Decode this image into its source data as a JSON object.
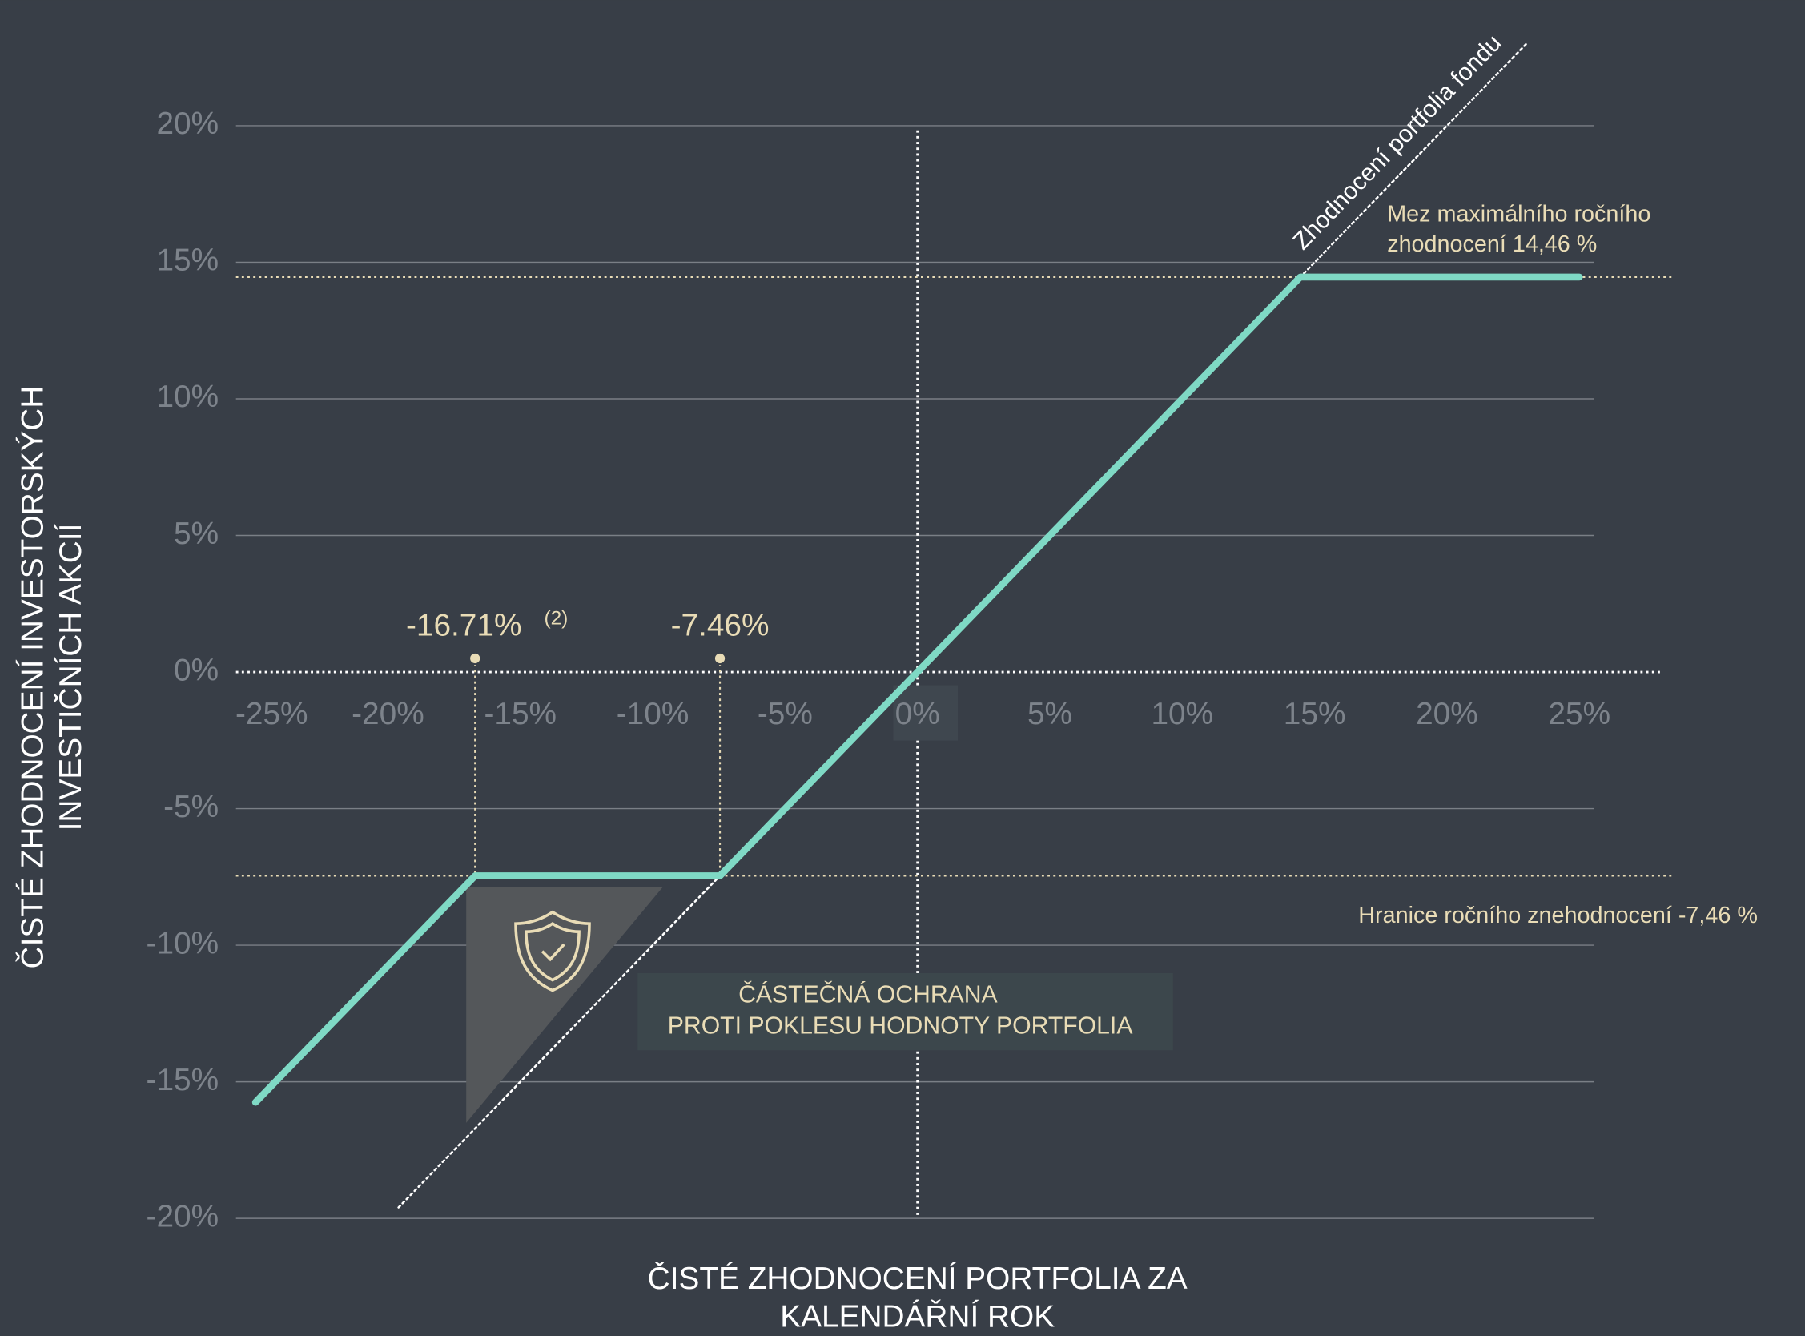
{
  "chart_data": {
    "type": "line",
    "xlabel": [
      "ČISTÉ ZHODNOCENÍ PORTFOLIA ZA",
      "KALENDÁŘNÍ ROK"
    ],
    "ylabel": [
      "ČISTÉ ZHODNOCENÍ INVESTORSKÝCH",
      "INVESTIČNÍCH AKCIÍ"
    ],
    "xlim": [
      -25,
      25
    ],
    "ylim": [
      -20,
      20
    ],
    "xticks": [
      {
        "value": -25,
        "label": "-25%"
      },
      {
        "value": -20,
        "label": "-20%"
      },
      {
        "value": -15,
        "label": "-15%"
      },
      {
        "value": -10,
        "label": "-10%"
      },
      {
        "value": -5,
        "label": "-5%"
      },
      {
        "value": 0,
        "label": "0%"
      },
      {
        "value": 5,
        "label": "5%"
      },
      {
        "value": 10,
        "label": "10%"
      },
      {
        "value": 15,
        "label": "15%"
      },
      {
        "value": 20,
        "label": "20%"
      },
      {
        "value": 25,
        "label": "25%"
      }
    ],
    "yticks": [
      {
        "value": 20,
        "label": "20%"
      },
      {
        "value": 15,
        "label": "15%"
      },
      {
        "value": 10,
        "label": "10%"
      },
      {
        "value": 5,
        "label": "5%"
      },
      {
        "value": 0,
        "label": "0%"
      },
      {
        "value": -5,
        "label": "-5%"
      },
      {
        "value": -10,
        "label": "-10%"
      },
      {
        "value": -15,
        "label": "-15%"
      },
      {
        "value": -20,
        "label": "-20%"
      }
    ],
    "grid": true,
    "series": [
      {
        "color": "#7fd9c5",
        "x": [
          -25,
          -16.71,
          -7.46,
          14.46,
          25
        ],
        "values": [
          -15.75,
          -7.46,
          -7.46,
          14.46,
          14.46
        ]
      },
      {
        "name": "Zhodnocení portfolia fondu",
        "color": "#ffffff",
        "x": [
          -19.6,
          23
        ],
        "values": [
          -19.6,
          23
        ]
      }
    ],
    "reference_lines": [
      {
        "value": 14.46,
        "label": [
          "Mez maximálního ročního",
          "zhodnocení 14,46 %"
        ]
      },
      {
        "value": -7.46,
        "label": "Hranice ročního znehodnocení -7,46 %"
      }
    ],
    "markers": [
      {
        "x": -16.71,
        "y": 0.5,
        "label": "-16.71%",
        "note": "(2)"
      },
      {
        "x": -7.46,
        "y": 0.5,
        "label": "-7.46%"
      }
    ],
    "callout": [
      "ČÁSTEČNÁ OCHRANA",
      "PROTI POKLESU HODNOTY PORTFOLIA"
    ]
  }
}
